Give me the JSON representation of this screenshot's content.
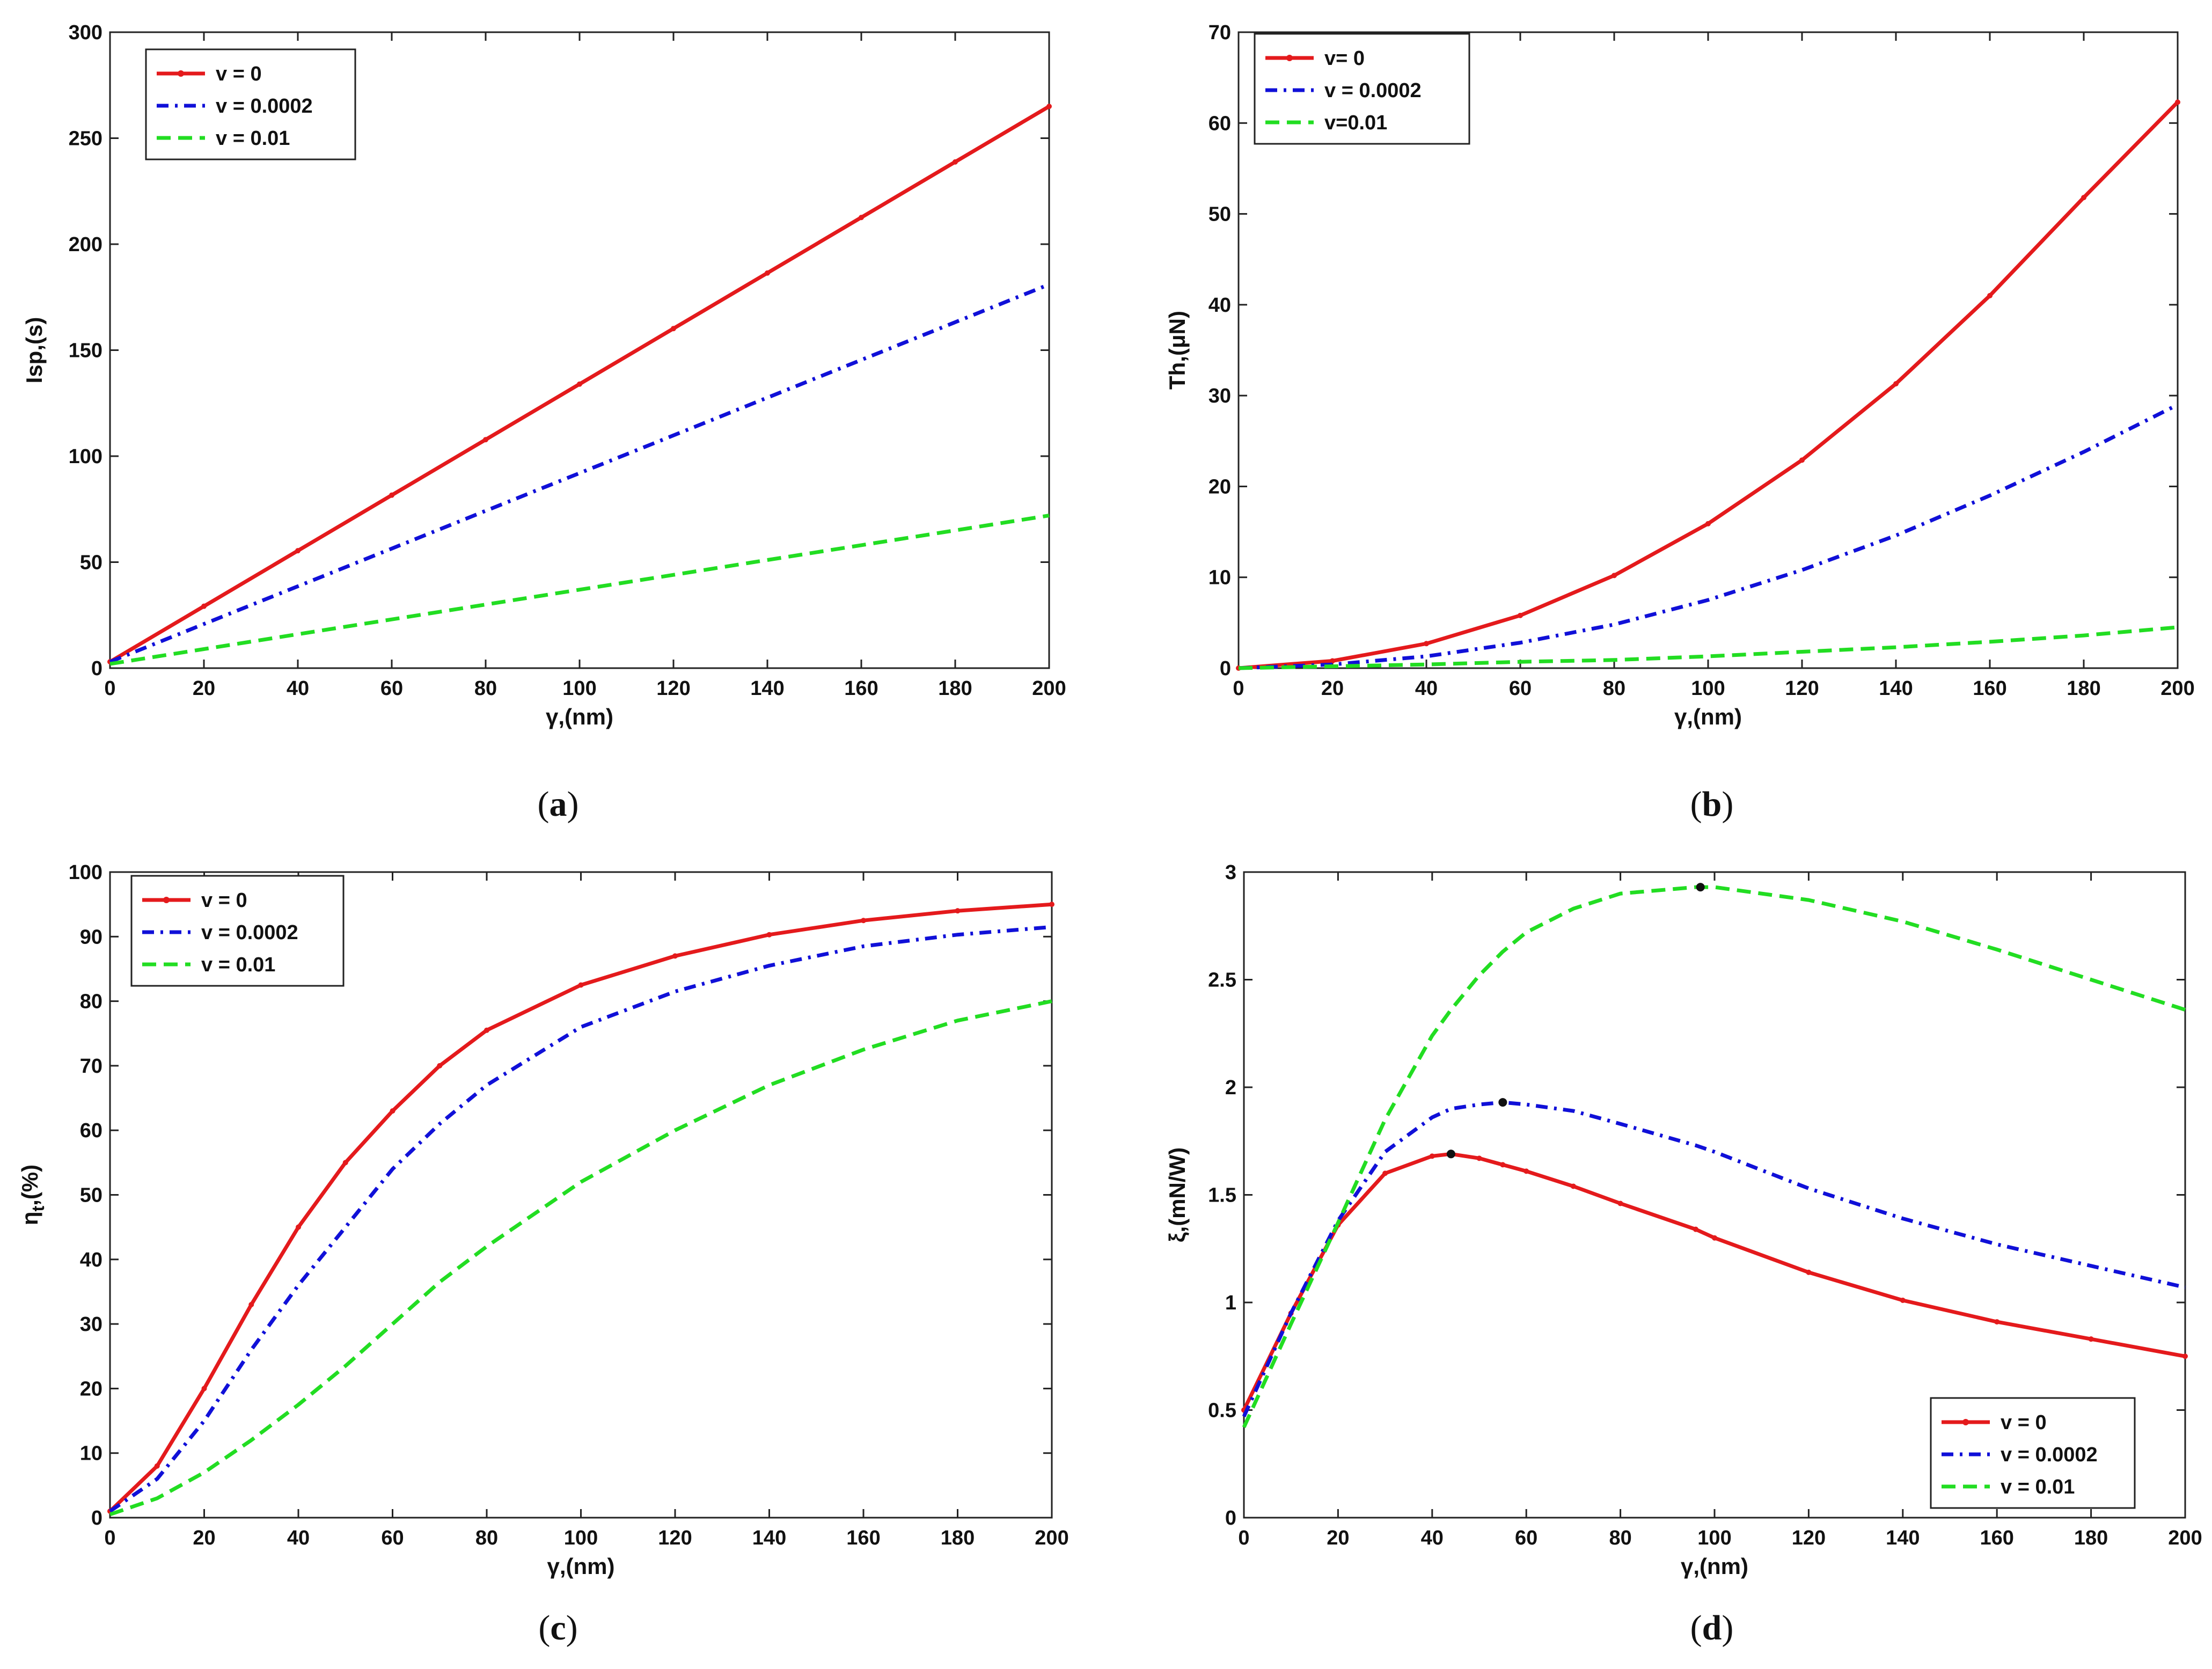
{
  "chart_data": [
    {
      "id": "a",
      "type": "line",
      "caption": "a",
      "xlabel": "γ,(nm)",
      "ylabel": "Isp,(s)",
      "xlim": [
        0,
        200
      ],
      "ylim": [
        0,
        300
      ],
      "xticks": [
        0,
        20,
        40,
        60,
        80,
        100,
        120,
        140,
        160,
        180,
        200
      ],
      "yticks": [
        0,
        50,
        100,
        150,
        200,
        250,
        300
      ],
      "legend_position": "top-left",
      "x": [
        0,
        20,
        40,
        60,
        80,
        100,
        120,
        140,
        160,
        180,
        200
      ],
      "series": [
        {
          "name": "v = 0",
          "color": "#e41a1c",
          "style": "solid-marker",
          "values": [
            3,
            29.2,
            55.4,
            81.6,
            107.8,
            134,
            160.2,
            186.4,
            212.6,
            238.8,
            265
          ]
        },
        {
          "name": "v = 0.0002",
          "color": "#1010d8",
          "style": "dashdot",
          "values": [
            3,
            20.8,
            38.6,
            56.4,
            74.2,
            92,
            109.8,
            127.6,
            145.4,
            163.2,
            181
          ]
        },
        {
          "name": "v = 0.01",
          "color": "#22dd22",
          "style": "dashed",
          "values": [
            2,
            9,
            16,
            23,
            30,
            37,
            44,
            51,
            58,
            65,
            72
          ]
        }
      ]
    },
    {
      "id": "b",
      "type": "line",
      "caption": "b",
      "xlabel": "γ,(nm)",
      "ylabel": "Th,(μN)",
      "xlim": [
        0,
        200
      ],
      "ylim": [
        0,
        70
      ],
      "xticks": [
        0,
        20,
        40,
        60,
        80,
        100,
        120,
        140,
        160,
        180,
        200
      ],
      "yticks": [
        0,
        10,
        20,
        30,
        40,
        50,
        60,
        70
      ],
      "legend_position": "top-left",
      "x": [
        0,
        20,
        40,
        60,
        80,
        100,
        120,
        140,
        160,
        180,
        200
      ],
      "series": [
        {
          "name": "v= 0",
          "color": "#e41a1c",
          "style": "solid-marker",
          "values": [
            0,
            0.8,
            2.7,
            5.8,
            10.2,
            15.9,
            22.9,
            31.3,
            41,
            51.8,
            62.3
          ]
        },
        {
          "name": "v = 0.0002",
          "color": "#1010d8",
          "style": "dashdot",
          "values": [
            0,
            0.4,
            1.3,
            2.8,
            4.8,
            7.5,
            10.8,
            14.6,
            19,
            23.8,
            29
          ]
        },
        {
          "name": "v=0.01",
          "color": "#22dd22",
          "style": "dashed",
          "values": [
            0,
            0.2,
            0.4,
            0.7,
            0.9,
            1.3,
            1.8,
            2.3,
            2.9,
            3.6,
            4.5
          ]
        }
      ]
    },
    {
      "id": "c",
      "type": "line",
      "caption": "c",
      "xlabel": "γ,(nm)",
      "ylabel": "ηt,(%)",
      "ylabel_main": "η",
      "ylabel_sub": "t",
      "ylabel_rest": ",(%)",
      "xlim": [
        0,
        200
      ],
      "ylim": [
        0,
        100
      ],
      "xticks": [
        0,
        20,
        40,
        60,
        80,
        100,
        120,
        140,
        160,
        180,
        200
      ],
      "yticks": [
        0,
        10,
        20,
        30,
        40,
        50,
        60,
        70,
        80,
        90,
        100
      ],
      "legend_position": "top-left",
      "x": [
        0,
        10,
        20,
        30,
        40,
        50,
        60,
        70,
        80,
        100,
        120,
        140,
        160,
        180,
        200
      ],
      "series": [
        {
          "name": "v = 0",
          "color": "#e41a1c",
          "style": "solid-marker",
          "values": [
            1,
            8,
            20,
            33,
            45,
            55,
            63,
            70,
            75.5,
            82.5,
            87,
            90.3,
            92.5,
            94,
            95
          ]
        },
        {
          "name": "v = 0.0002",
          "color": "#1010d8",
          "style": "dashdot",
          "values": [
            1,
            6,
            15,
            26,
            36,
            45,
            54,
            61,
            67,
            76,
            81.5,
            85.5,
            88.5,
            90.3,
            91.5
          ]
        },
        {
          "name": "v = 0.01",
          "color": "#22dd22",
          "style": "dashed",
          "values": [
            0.5,
            3,
            7,
            12,
            17.5,
            23.5,
            30,
            36.5,
            42,
            52,
            60,
            67,
            72.5,
            77,
            80
          ]
        }
      ]
    },
    {
      "id": "d",
      "type": "line",
      "caption": "d",
      "xlabel": "γ,(nm)",
      "ylabel": "ξ,(mN/W)",
      "xlim": [
        0,
        200
      ],
      "ylim": [
        0,
        3
      ],
      "xticks": [
        0,
        20,
        40,
        60,
        80,
        100,
        120,
        140,
        160,
        180,
        200
      ],
      "yticks": [
        0,
        0.5,
        1,
        1.5,
        2,
        2.5,
        3
      ],
      "legend_position": "bottom-right",
      "x": [
        0,
        10,
        20,
        30,
        40,
        44,
        50,
        55,
        60,
        70,
        80,
        96,
        100,
        120,
        140,
        160,
        180,
        200
      ],
      "series": [
        {
          "name": "v = 0",
          "color": "#e41a1c",
          "style": "solid-marker",
          "values": [
            0.5,
            0.95,
            1.36,
            1.6,
            1.68,
            1.69,
            1.67,
            1.64,
            1.61,
            1.54,
            1.46,
            1.34,
            1.3,
            1.14,
            1.01,
            0.91,
            0.83,
            0.75
          ]
        },
        {
          "name": "v = 0.0002",
          "color": "#1010d8",
          "style": "dashdot",
          "values": [
            0.47,
            0.95,
            1.38,
            1.7,
            1.86,
            1.9,
            1.92,
            1.93,
            1.92,
            1.89,
            1.83,
            1.73,
            1.7,
            1.53,
            1.39,
            1.27,
            1.17,
            1.07
          ]
        },
        {
          "name": "v = 0.01",
          "color": "#22dd22",
          "style": "dashed",
          "values": [
            0.42,
            0.9,
            1.37,
            1.85,
            2.24,
            2.36,
            2.52,
            2.63,
            2.72,
            2.83,
            2.9,
            2.93,
            2.93,
            2.87,
            2.77,
            2.64,
            2.5,
            2.36
          ]
        }
      ],
      "peak_markers": [
        {
          "series": "v = 0",
          "x": 44,
          "y": 1.69
        },
        {
          "series": "v = 0.0002",
          "x": 55,
          "y": 1.93
        },
        {
          "series": "v = 0.01",
          "x": 97,
          "y": 2.93
        }
      ]
    }
  ]
}
